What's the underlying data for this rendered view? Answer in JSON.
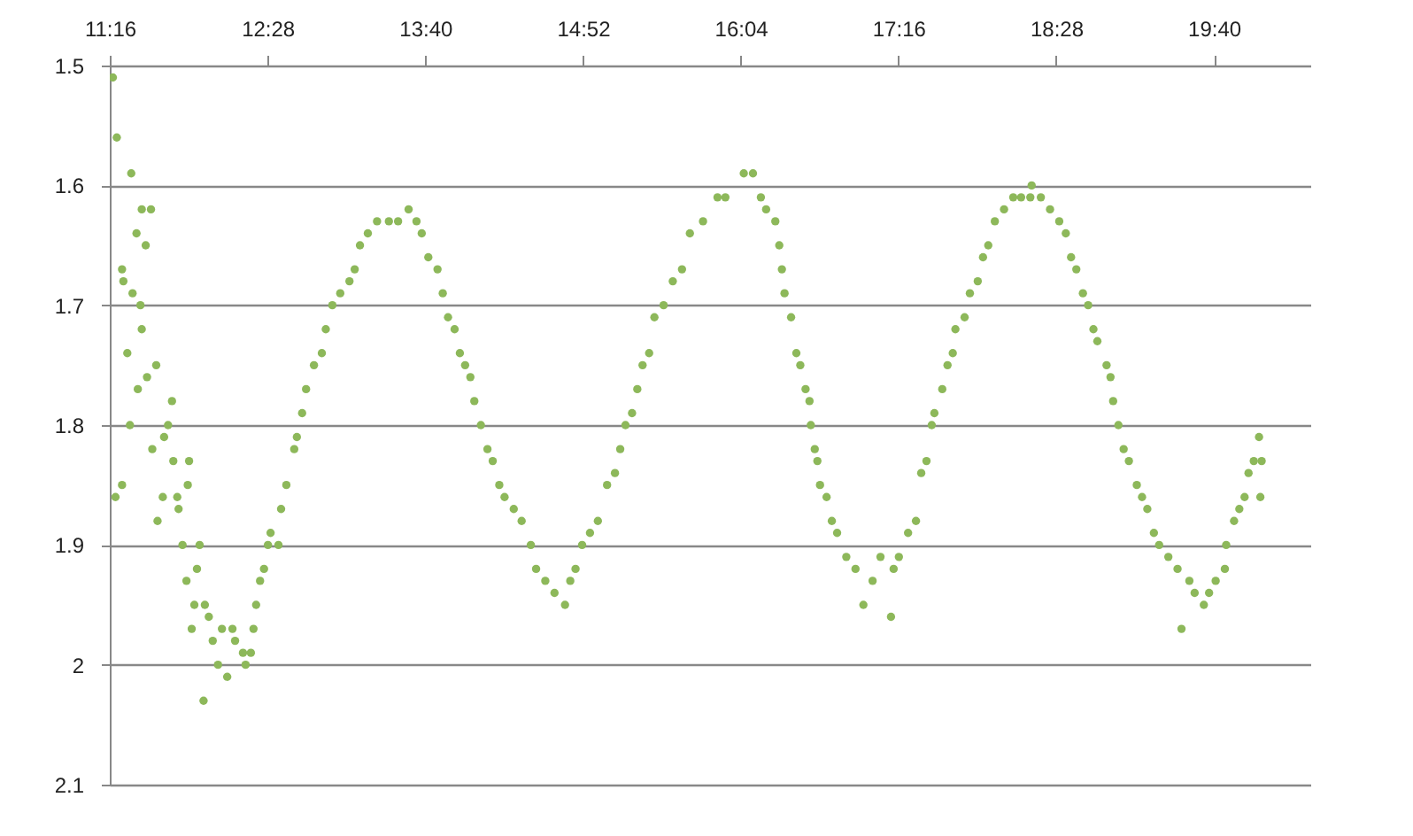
{
  "chart_data": {
    "type": "scatter",
    "marker": "circle",
    "grid": "y",
    "xlim": [
      11.2667,
      20.4
    ],
    "xticks": [
      {
        "value": 11.2667,
        "label": "11:16"
      },
      {
        "value": 12.4667,
        "label": "12:28"
      },
      {
        "value": 13.6667,
        "label": "13:40"
      },
      {
        "value": 14.8667,
        "label": "14:52"
      },
      {
        "value": 16.0667,
        "label": "16:04"
      },
      {
        "value": 17.2667,
        "label": "17:16"
      },
      {
        "value": 18.4667,
        "label": "18:28"
      },
      {
        "value": 19.6667,
        "label": "19:40"
      }
    ],
    "ylim": [
      2.1,
      1.5
    ],
    "yticks": [
      1.5,
      1.6,
      1.7,
      1.8,
      1.9,
      2,
      2.1
    ],
    "series": [
      {
        "color": "#8db85a",
        "x": [
          11.29,
          11.32,
          11.31,
          11.36,
          11.43,
          11.36,
          11.37,
          11.4,
          11.42,
          11.44,
          11.47,
          11.51,
          11.58,
          11.54,
          11.5,
          11.51,
          11.48,
          11.55,
          11.62,
          11.59,
          11.63,
          11.67,
          11.68,
          11.74,
          11.71,
          11.75,
          11.78,
          11.79,
          11.82,
          11.85,
          11.86,
          11.87,
          11.89,
          11.91,
          11.93,
          11.95,
          11.98,
          11.99,
          12.02,
          12.05,
          12.09,
          12.12,
          12.16,
          12.2,
          12.22,
          12.28,
          12.3,
          12.34,
          12.36,
          12.38,
          12.41,
          12.44,
          12.47,
          12.49,
          12.55,
          12.57,
          12.61,
          12.67,
          12.69,
          12.73,
          12.76,
          12.82,
          12.88,
          12.91,
          12.96,
          13.02,
          13.09,
          13.13,
          13.17,
          13.23,
          13.3,
          13.39,
          13.46,
          13.54,
          13.6,
          13.64,
          13.69,
          13.76,
          13.8,
          13.84,
          13.89,
          13.93,
          13.97,
          14.01,
          14.04,
          14.09,
          14.14,
          14.18,
          14.23,
          14.27,
          14.34,
          14.4,
          14.47,
          14.51,
          14.58,
          14.65,
          14.73,
          14.77,
          14.81,
          14.86,
          14.92,
          14.98,
          15.05,
          15.11,
          15.15,
          15.19,
          15.24,
          15.28,
          15.32,
          15.37,
          15.41,
          15.48,
          15.55,
          15.62,
          15.68,
          15.78,
          15.89,
          15.95,
          16.09,
          16.16,
          16.22,
          16.26,
          16.33,
          16.36,
          16.38,
          16.4,
          16.45,
          16.49,
          16.52,
          16.56,
          16.59,
          16.6,
          16.63,
          16.65,
          16.67,
          16.72,
          16.76,
          16.8,
          16.87,
          16.94,
          17.0,
          17.07,
          17.13,
          17.21,
          17.23,
          17.27,
          17.34,
          17.4,
          17.44,
          17.48,
          17.52,
          17.54,
          17.6,
          17.64,
          17.68,
          17.7,
          17.77,
          17.81,
          17.87,
          17.91,
          17.95,
          18.0,
          18.07,
          18.14,
          18.2,
          18.27,
          18.28,
          18.35,
          18.42,
          18.49,
          18.54,
          18.58,
          18.62,
          18.67,
          18.71,
          18.75,
          18.78,
          18.85,
          18.88,
          18.9,
          18.94,
          18.98,
          19.02,
          19.08,
          19.12,
          19.16,
          19.21,
          19.25,
          19.32,
          19.39,
          19.42,
          19.48,
          19.52,
          19.59,
          19.63,
          19.68,
          19.75,
          19.76,
          19.82,
          19.86,
          19.9,
          19.93,
          19.97,
          20.01,
          20.02,
          20.03
        ],
        "values": [
          1.51,
          1.56,
          1.86,
          1.85,
          1.59,
          1.67,
          1.68,
          1.74,
          1.8,
          1.69,
          1.64,
          1.62,
          1.62,
          1.65,
          1.7,
          1.72,
          1.77,
          1.76,
          1.75,
          1.82,
          1.88,
          1.86,
          1.81,
          1.78,
          1.8,
          1.83,
          1.86,
          1.87,
          1.9,
          1.93,
          1.85,
          1.83,
          1.97,
          1.95,
          1.92,
          1.9,
          2.03,
          1.95,
          1.96,
          1.98,
          2.0,
          1.97,
          2.01,
          1.97,
          1.98,
          1.99,
          2.0,
          1.99,
          1.97,
          1.95,
          1.93,
          1.92,
          1.9,
          1.89,
          1.9,
          1.87,
          1.85,
          1.82,
          1.81,
          1.79,
          1.77,
          1.75,
          1.74,
          1.72,
          1.7,
          1.69,
          1.68,
          1.67,
          1.65,
          1.64,
          1.63,
          1.63,
          1.63,
          1.62,
          1.63,
          1.64,
          1.66,
          1.67,
          1.69,
          1.71,
          1.72,
          1.74,
          1.75,
          1.76,
          1.78,
          1.8,
          1.82,
          1.83,
          1.85,
          1.86,
          1.87,
          1.88,
          1.9,
          1.92,
          1.93,
          1.94,
          1.95,
          1.93,
          1.92,
          1.9,
          1.89,
          1.88,
          1.85,
          1.84,
          1.82,
          1.8,
          1.79,
          1.77,
          1.75,
          1.74,
          1.71,
          1.7,
          1.68,
          1.67,
          1.64,
          1.63,
          1.61,
          1.61,
          1.59,
          1.59,
          1.61,
          1.62,
          1.63,
          1.65,
          1.67,
          1.69,
          1.71,
          1.74,
          1.75,
          1.77,
          1.78,
          1.8,
          1.82,
          1.83,
          1.85,
          1.86,
          1.88,
          1.89,
          1.91,
          1.92,
          1.95,
          1.93,
          1.91,
          1.96,
          1.92,
          1.91,
          1.89,
          1.88,
          1.84,
          1.83,
          1.8,
          1.79,
          1.77,
          1.75,
          1.74,
          1.72,
          1.71,
          1.69,
          1.68,
          1.66,
          1.65,
          1.63,
          1.62,
          1.61,
          1.61,
          1.61,
          1.6,
          1.61,
          1.62,
          1.63,
          1.64,
          1.66,
          1.67,
          1.69,
          1.7,
          1.72,
          1.73,
          1.75,
          1.76,
          1.78,
          1.8,
          1.82,
          1.83,
          1.85,
          1.86,
          1.87,
          1.89,
          1.9,
          1.91,
          1.92,
          1.97,
          1.93,
          1.94,
          1.95,
          1.94,
          1.93,
          1.92,
          1.9,
          1.88,
          1.87,
          1.86,
          1.84,
          1.83,
          1.81,
          1.86,
          1.83
        ]
      }
    ]
  }
}
